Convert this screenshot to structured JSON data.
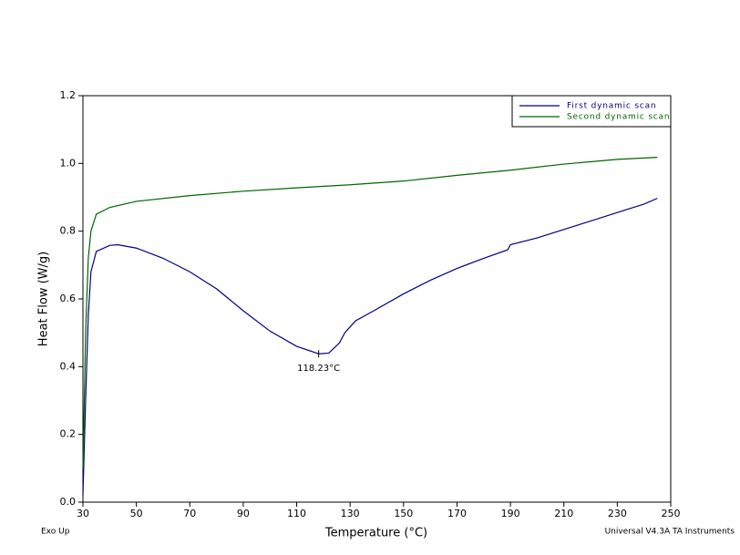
{
  "chart_data": {
    "type": "line",
    "y_label": "Heat Flow (W/g)",
    "x_label": "Temperature (°C)",
    "footer_left": "Exo Up",
    "footer_right": "Universal V4.3A TA Instruments",
    "xlim": [
      30,
      250
    ],
    "ylim": [
      0,
      1.2
    ],
    "xticks": [
      30,
      50,
      70,
      90,
      110,
      130,
      150,
      170,
      190,
      210,
      230,
      250
    ],
    "yticks": [
      {
        "value": 0,
        "label": "0.0"
      },
      0.2,
      0.4,
      0.6,
      0.8,
      {
        "value": 1,
        "label": "1.0"
      },
      1.2
    ],
    "legend": "upper right",
    "series": [
      {
        "name": "First dynamic scan",
        "color": "#000080",
        "x": [
          30,
          31,
          32,
          33,
          35,
          40,
          43,
          50,
          60,
          70,
          80,
          90,
          100,
          110,
          118.23,
          122,
          126,
          128,
          132,
          140,
          150,
          160,
          170,
          180,
          189,
          190,
          200,
          210,
          220,
          230,
          240,
          245
        ],
        "values": [
          0.02,
          0.3,
          0.55,
          0.68,
          0.74,
          0.758,
          0.76,
          0.75,
          0.72,
          0.68,
          0.63,
          0.565,
          0.505,
          0.46,
          0.438,
          0.44,
          0.47,
          0.5,
          0.535,
          0.57,
          0.615,
          0.655,
          0.69,
          0.72,
          0.745,
          0.76,
          0.78,
          0.805,
          0.83,
          0.855,
          0.88,
          0.897
        ]
      },
      {
        "name": "Second dynamic scan",
        "color": "#006400",
        "x": [
          30,
          31,
          32,
          33,
          35,
          40,
          50,
          70,
          90,
          110,
          130,
          150,
          170,
          190,
          210,
          230,
          245
        ],
        "values": [
          0.1,
          0.5,
          0.72,
          0.8,
          0.85,
          0.87,
          0.888,
          0.905,
          0.918,
          0.928,
          0.937,
          0.948,
          0.965,
          0.98,
          0.998,
          1.012,
          1.018
        ]
      }
    ],
    "annotation": {
      "text": "118.23°C",
      "x": 118.23,
      "y": 0.438
    }
  }
}
